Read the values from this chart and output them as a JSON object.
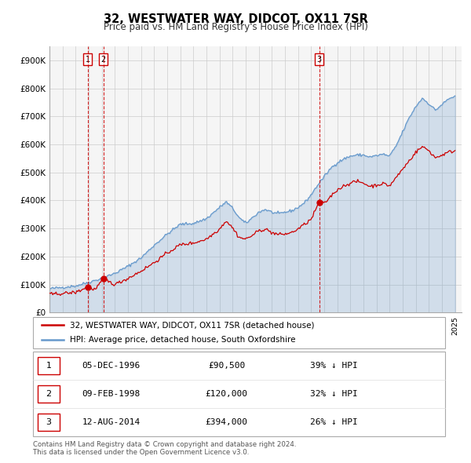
{
  "title": "32, WESTWATER WAY, DIDCOT, OX11 7SR",
  "subtitle": "Price paid vs. HM Land Registry's House Price Index (HPI)",
  "xlim": [
    1994.0,
    2025.5
  ],
  "ylim": [
    0,
    950000
  ],
  "yticks": [
    0,
    100000,
    200000,
    300000,
    400000,
    500000,
    600000,
    700000,
    800000,
    900000
  ],
  "ytick_labels": [
    "£0",
    "£100K",
    "£200K",
    "£300K",
    "£400K",
    "£500K",
    "£600K",
    "£700K",
    "£800K",
    "£900K"
  ],
  "price_color": "#cc0000",
  "hpi_color": "#6699cc",
  "grid_color": "#cccccc",
  "transaction_vline_color": "#cc0000",
  "legend_label_price": "32, WESTWATER WAY, DIDCOT, OX11 7SR (detached house)",
  "legend_label_hpi": "HPI: Average price, detached house, South Oxfordshire",
  "transactions": [
    {
      "num": 1,
      "date": "05-DEC-1996",
      "price": 90500,
      "price_str": "£90,500",
      "pct": "39%",
      "year": 1996.92
    },
    {
      "num": 2,
      "date": "09-FEB-1998",
      "price": 120000,
      "price_str": "£120,000",
      "pct": "32%",
      "year": 1998.11
    },
    {
      "num": 3,
      "date": "12-AUG-2014",
      "price": 394000,
      "price_str": "£394,000",
      "pct": "26%",
      "year": 2014.62
    }
  ],
  "footer_line1": "Contains HM Land Registry data © Crown copyright and database right 2024.",
  "footer_line2": "This data is licensed under the Open Government Licence v3.0.",
  "background_color": "#ffffff",
  "plot_bg_color": "#f5f5f5",
  "hpi_anchors": [
    [
      1994.0,
      85000
    ],
    [
      1995.0,
      90000
    ],
    [
      1996.0,
      95000
    ],
    [
      1997.0,
      108000
    ],
    [
      1998.0,
      122000
    ],
    [
      1999.0,
      140000
    ],
    [
      2000.0,
      165000
    ],
    [
      2001.0,
      195000
    ],
    [
      2002.0,
      240000
    ],
    [
      2003.0,
      280000
    ],
    [
      2004.0,
      315000
    ],
    [
      2005.0,
      318000
    ],
    [
      2006.0,
      335000
    ],
    [
      2007.0,
      375000
    ],
    [
      2007.5,
      395000
    ],
    [
      2008.0,
      372000
    ],
    [
      2008.5,
      338000
    ],
    [
      2009.0,
      318000
    ],
    [
      2009.5,
      338000
    ],
    [
      2010.0,
      358000
    ],
    [
      2010.5,
      368000
    ],
    [
      2011.0,
      358000
    ],
    [
      2011.5,
      352000
    ],
    [
      2012.0,
      358000
    ],
    [
      2012.5,
      363000
    ],
    [
      2013.0,
      375000
    ],
    [
      2013.5,
      392000
    ],
    [
      2014.0,
      420000
    ],
    [
      2014.5,
      455000
    ],
    [
      2015.0,
      485000
    ],
    [
      2015.5,
      515000
    ],
    [
      2016.0,
      535000
    ],
    [
      2016.5,
      548000
    ],
    [
      2017.0,
      558000
    ],
    [
      2017.5,
      562000
    ],
    [
      2018.0,
      562000
    ],
    [
      2018.5,
      555000
    ],
    [
      2019.0,
      560000
    ],
    [
      2019.5,
      565000
    ],
    [
      2020.0,
      558000
    ],
    [
      2020.5,
      595000
    ],
    [
      2021.0,
      645000
    ],
    [
      2021.5,
      695000
    ],
    [
      2022.0,
      735000
    ],
    [
      2022.5,
      765000
    ],
    [
      2023.0,
      745000
    ],
    [
      2023.5,
      722000
    ],
    [
      2024.0,
      742000
    ],
    [
      2024.5,
      762000
    ],
    [
      2025.0,
      772000
    ]
  ],
  "price_anchors": [
    [
      1994.0,
      65000
    ],
    [
      1995.0,
      68000
    ],
    [
      1996.0,
      72000
    ],
    [
      1996.92,
      90500
    ],
    [
      1997.5,
      82000
    ],
    [
      1998.11,
      120000
    ],
    [
      1999.0,
      100000
    ],
    [
      2000.0,
      122000
    ],
    [
      2001.0,
      148000
    ],
    [
      2002.0,
      178000
    ],
    [
      2003.0,
      212000
    ],
    [
      2004.0,
      242000
    ],
    [
      2005.0,
      248000
    ],
    [
      2006.0,
      262000
    ],
    [
      2007.0,
      298000
    ],
    [
      2007.5,
      328000
    ],
    [
      2008.0,
      302000
    ],
    [
      2008.5,
      268000
    ],
    [
      2009.0,
      262000
    ],
    [
      2009.5,
      275000
    ],
    [
      2010.0,
      292000
    ],
    [
      2010.5,
      298000
    ],
    [
      2011.0,
      285000
    ],
    [
      2011.5,
      278000
    ],
    [
      2012.0,
      280000
    ],
    [
      2012.5,
      285000
    ],
    [
      2013.0,
      298000
    ],
    [
      2013.5,
      315000
    ],
    [
      2014.0,
      332000
    ],
    [
      2014.62,
      394000
    ],
    [
      2015.0,
      388000
    ],
    [
      2015.5,
      415000
    ],
    [
      2016.0,
      438000
    ],
    [
      2016.5,
      452000
    ],
    [
      2017.0,
      462000
    ],
    [
      2017.5,
      468000
    ],
    [
      2018.0,
      462000
    ],
    [
      2018.5,
      450000
    ],
    [
      2019.0,
      455000
    ],
    [
      2019.5,
      460000
    ],
    [
      2020.0,
      452000
    ],
    [
      2020.5,
      482000
    ],
    [
      2021.0,
      512000
    ],
    [
      2021.5,
      542000
    ],
    [
      2022.0,
      572000
    ],
    [
      2022.5,
      592000
    ],
    [
      2023.0,
      578000
    ],
    [
      2023.5,
      552000
    ],
    [
      2024.0,
      562000
    ],
    [
      2024.5,
      572000
    ],
    [
      2025.0,
      578000
    ]
  ]
}
